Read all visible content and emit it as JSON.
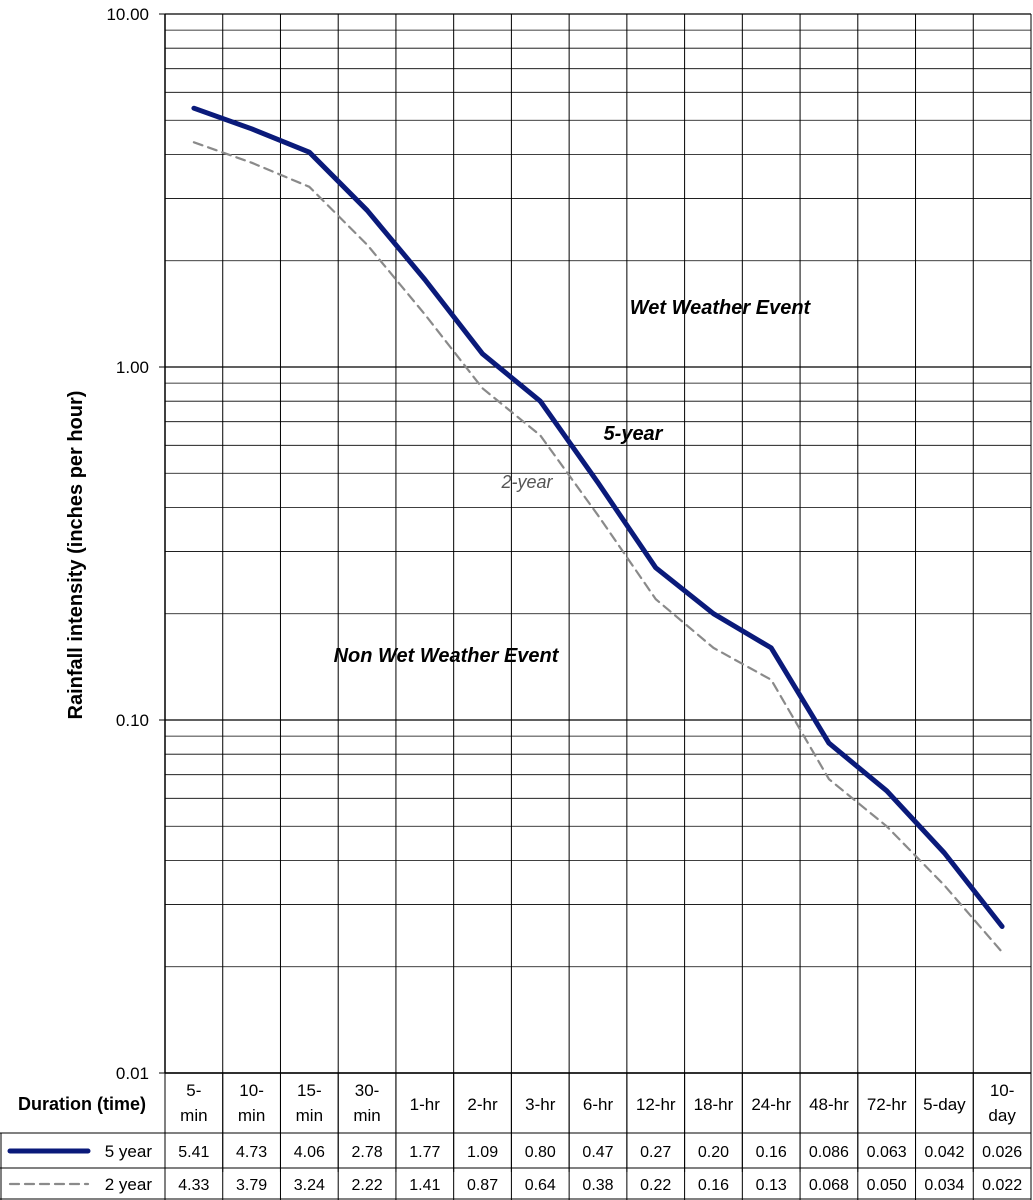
{
  "chart_data": {
    "type": "line",
    "y_scale": "log",
    "ylim": [
      0.01,
      10
    ],
    "ylabel": "Rainfall intensity (inches per hour)",
    "y_ticks": [
      "10.00",
      "1.00",
      "0.10",
      "0.01"
    ],
    "x_header": "Duration (time)",
    "categories": [
      [
        "5-",
        "min"
      ],
      [
        "10-",
        "min"
      ],
      [
        "15-",
        "min"
      ],
      [
        "30-",
        "min"
      ],
      [
        "1-hr"
      ],
      [
        "2-hr"
      ],
      [
        "3-hr"
      ],
      [
        "6-hr"
      ],
      [
        "12-hr"
      ],
      [
        "18-hr"
      ],
      [
        "24-hr"
      ],
      [
        "48-hr"
      ],
      [
        "72-hr"
      ],
      [
        "5-day"
      ],
      [
        "10-",
        "day"
      ]
    ],
    "grid": true,
    "series": [
      {
        "name": "5 year",
        "color": "#0a1a7a",
        "style": "solid",
        "values": [
          5.41,
          4.73,
          4.06,
          2.78,
          1.77,
          1.09,
          0.8,
          0.47,
          0.27,
          0.2,
          0.16,
          0.086,
          0.063,
          0.042,
          0.026
        ],
        "labels": [
          "5.41",
          "4.73",
          "4.06",
          "2.78",
          "1.77",
          "1.09",
          "0.80",
          "0.47",
          "0.27",
          "0.20",
          "0.16",
          "0.086",
          "0.063",
          "0.042",
          "0.026"
        ]
      },
      {
        "name": "2 year",
        "color": "#8a8a8a",
        "style": "dashed",
        "values": [
          4.33,
          3.79,
          3.24,
          2.22,
          1.41,
          0.87,
          0.64,
          0.38,
          0.22,
          0.16,
          0.13,
          0.068,
          0.05,
          0.034,
          0.022
        ],
        "labels": [
          "4.33",
          "3.79",
          "3.24",
          "2.22",
          "1.41",
          "0.87",
          "0.64",
          "0.38",
          "0.22",
          "0.16",
          "0.13",
          "0.068",
          "0.050",
          "0.034",
          "0.022"
        ]
      }
    ],
    "annotations": [
      {
        "text": "Wet Weather Event",
        "style": "bold"
      },
      {
        "text": "5-year",
        "style": "bold"
      },
      {
        "text": "2-year",
        "style": "italic"
      },
      {
        "text": "Non Wet Weather Event",
        "style": "bold"
      }
    ]
  }
}
